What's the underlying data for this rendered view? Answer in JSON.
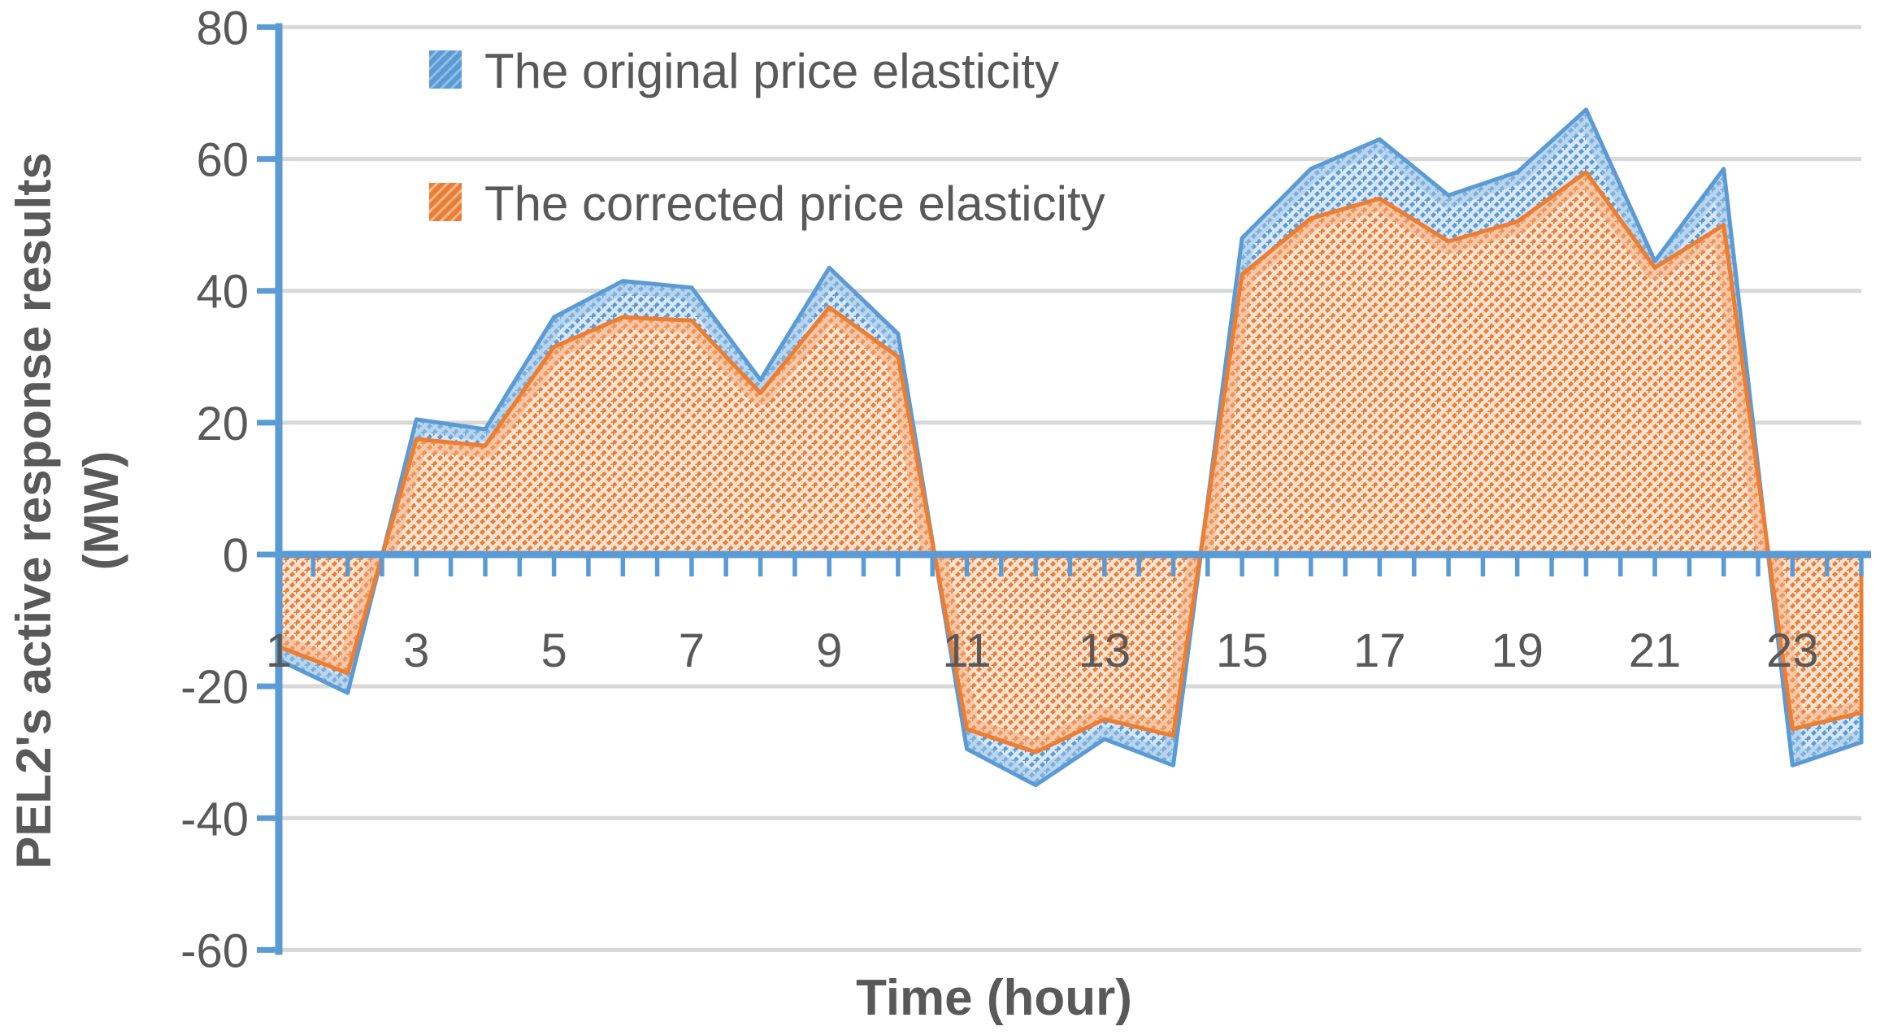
{
  "chart_data": {
    "type": "area",
    "title": "",
    "xlabel": "Time (hour)",
    "ylabel_line1": "PEL2's active response results",
    "ylabel_line2": "(MW)",
    "x": [
      1,
      2,
      3,
      4,
      5,
      6,
      7,
      8,
      9,
      10,
      11,
      12,
      13,
      14,
      15,
      16,
      17,
      18,
      19,
      20,
      21,
      22,
      23,
      24
    ],
    "series": [
      {
        "name": "The original price elasticity",
        "key": "original",
        "color": "#5B9BD5",
        "fill": "#D9E7F5",
        "hatch": "#5B9BD5",
        "glow": "#9CC3E8",
        "values": [
          -16,
          -21,
          20.5,
          19,
          36,
          41.5,
          40.5,
          26.5,
          43.5,
          33.5,
          -29.5,
          -35,
          -28,
          -32,
          48,
          58.5,
          63,
          54.5,
          58,
          67.5,
          44.5,
          58.5,
          -32,
          -28.5
        ]
      },
      {
        "name": "The corrected price elasticity",
        "key": "corrected",
        "color": "#ED7D31",
        "fill": "#FAE3D3",
        "hatch": "#ED7D31",
        "glow": "#F2AC7E",
        "values": [
          -14,
          -18,
          17.5,
          16.5,
          31.5,
          36,
          35.5,
          24.5,
          37.5,
          30,
          -26.5,
          -30,
          -25,
          -27.5,
          42.5,
          51,
          54,
          47.5,
          50.5,
          58,
          43.5,
          50,
          -26.5,
          -24
        ]
      }
    ],
    "y_axis": {
      "min": -60,
      "max": 80,
      "tick_labels": [
        80,
        60,
        40,
        20,
        0,
        -20,
        -40,
        -60
      ],
      "gridlines": [
        80,
        60,
        40,
        20,
        -20,
        -40,
        -60
      ]
    },
    "x_axis": {
      "tick_labels": [
        1,
        3,
        5,
        7,
        9,
        11,
        13,
        15,
        17,
        19,
        21,
        23
      ],
      "minor_ticks_per_hour": 2
    },
    "legend": {
      "items": [
        "The original price elasticity",
        "The corrected price elasticity"
      ],
      "position": "top-left-inside"
    },
    "colors": {
      "axis": "#5B9BD5",
      "gridline": "#D8D8D8",
      "text": "#595959"
    },
    "grid": "horizontal-on"
  }
}
